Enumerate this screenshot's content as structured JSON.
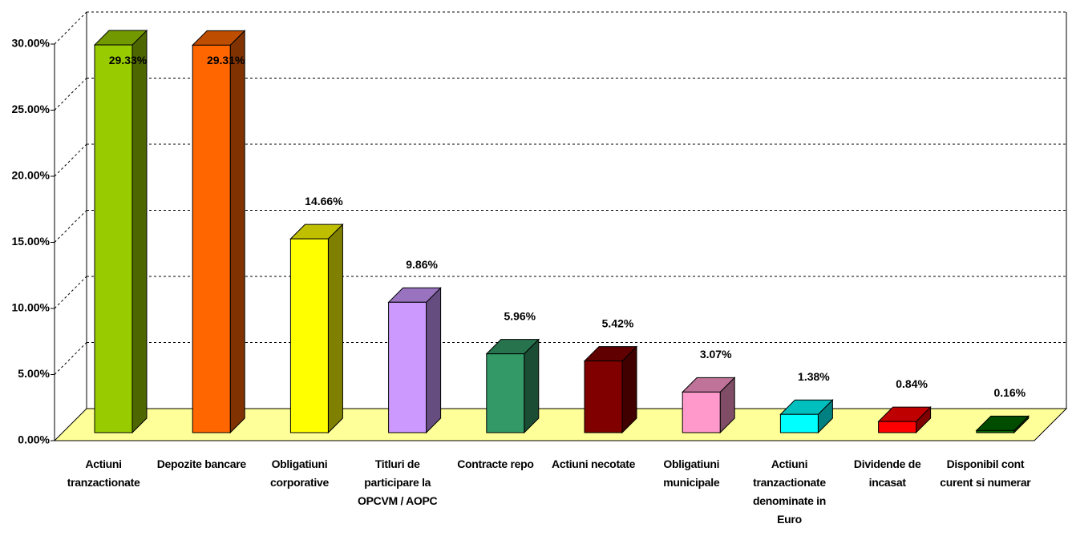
{
  "chart_data": {
    "type": "bar3d",
    "categories": [
      "Actiuni tranzactionate",
      "Depozite bancare",
      "Obligatiuni corporative",
      "Titluri de participare la OPCVM / AOPC",
      "Contracte repo",
      "Actiuni necotate",
      "Obligatiuni municipale",
      "Actiuni tranzactionate denominate in Euro",
      "Dividende de incasat",
      "Disponibil cont curent si numerar"
    ],
    "values": [
      29.33,
      29.31,
      14.66,
      9.86,
      5.96,
      5.42,
      3.07,
      1.38,
      0.84,
      0.16
    ],
    "value_labels": [
      "29.33%",
      "29.31%",
      "14.66%",
      "9.86%",
      "5.96%",
      "5.42%",
      "3.07%",
      "1.38%",
      "0.84%",
      "0.16%"
    ],
    "colors": [
      "#99cc00",
      "#ff6600",
      "#ffff00",
      "#cc99ff",
      "#339966",
      "#800000",
      "#ff99cc",
      "#00ffff",
      "#ff0000",
      "#006600"
    ],
    "ylim": [
      0,
      30
    ],
    "yticks": [
      {
        "value": 0,
        "label": "0.00%"
      },
      {
        "value": 5,
        "label": "5.00%"
      },
      {
        "value": 10,
        "label": "10.00%"
      },
      {
        "value": 15,
        "label": "15.00%"
      },
      {
        "value": 20,
        "label": "20.00%"
      },
      {
        "value": 25,
        "label": "25.00%"
      },
      {
        "value": 30,
        "label": "30.00%"
      }
    ],
    "grid": true,
    "floor_color": "#ffff99"
  }
}
